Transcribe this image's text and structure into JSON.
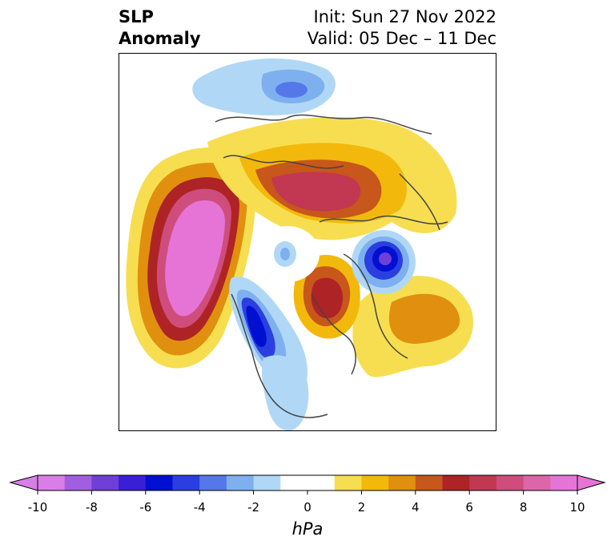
{
  "title": {
    "left_line1": "SLP",
    "left_line2": "Anomaly",
    "right_line1": "Init: Sun 27 Nov 2022",
    "right_line2": "Valid: 05 Dec – 11 Dec"
  },
  "colorbar": {
    "unit": "hPa",
    "ticks": [
      "-10",
      "-8",
      "-6",
      "-4",
      "-2",
      "0",
      "2",
      "4",
      "6",
      "8",
      "10"
    ],
    "colors": [
      "#d97ee6",
      "#a15fe0",
      "#6f3fd8",
      "#3b1fd6",
      "#0010d0",
      "#2b3fe0",
      "#5577ea",
      "#7eb0f0",
      "#b0d8f6",
      "#ffffff",
      "#ffffff",
      "#f7de50",
      "#f2b90c",
      "#e0900e",
      "#c7571a",
      "#ae2326",
      "#c23752",
      "#cf4d7c",
      "#dc66a8",
      "#e674d6"
    ]
  },
  "map": {
    "projection": "north-polar-stereographic",
    "features": [
      {
        "name": "pacific-positive-anomaly",
        "sign": "positive",
        "peak_hpa": 10
      },
      {
        "name": "northern-europe-siberia-positive-anomaly",
        "sign": "positive",
        "peak_hpa": 8
      },
      {
        "name": "greenland-positive-anomaly",
        "sign": "positive",
        "peak_hpa": 8
      },
      {
        "name": "north-atlantic-positive-anomaly",
        "sign": "positive",
        "peak_hpa": 4
      },
      {
        "name": "western-north-america-negative-anomaly",
        "sign": "negative",
        "peak_hpa": -8
      },
      {
        "name": "scandinavia-negative-anomaly",
        "sign": "negative",
        "peak_hpa": -8
      },
      {
        "name": "arctic-negative-anomaly",
        "sign": "negative",
        "peak_hpa": -3
      },
      {
        "name": "africa-negative-anomaly",
        "sign": "negative",
        "peak_hpa": -4
      },
      {
        "name": "eastern-us-negative-anomaly",
        "sign": "negative",
        "peak_hpa": -2
      }
    ]
  }
}
